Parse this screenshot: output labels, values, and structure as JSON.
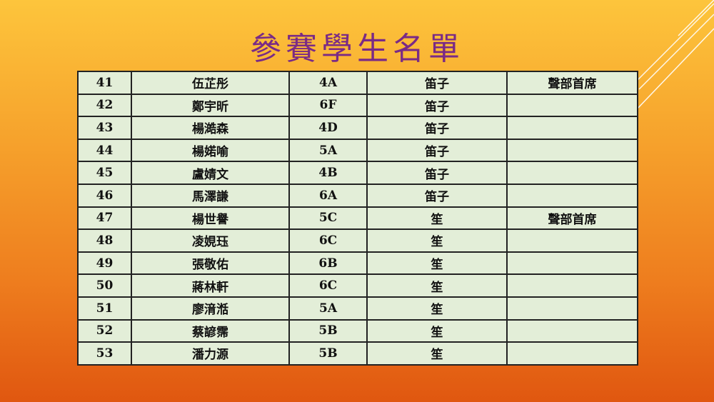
{
  "title": "參賽學生名單",
  "rows": [
    [
      "41",
      "伍芷彤",
      "4A",
      "笛子",
      "聲部首席"
    ],
    [
      "42",
      "鄭宇昕",
      "6F",
      "笛子",
      ""
    ],
    [
      "43",
      "楊澔森",
      "4D",
      "笛子",
      ""
    ],
    [
      "44",
      "楊婼喻",
      "5A",
      "笛子",
      ""
    ],
    [
      "45",
      "盧婧文",
      "4B",
      "笛子",
      ""
    ],
    [
      "46",
      "馬澤謙",
      "6A",
      "笛子",
      ""
    ],
    [
      "47",
      "楊世譽",
      "5C",
      "笙",
      "聲部首席"
    ],
    [
      "48",
      "凌娊珏",
      "6C",
      "笙",
      ""
    ],
    [
      "49",
      "張敬佑",
      "6B",
      "笙",
      ""
    ],
    [
      "50",
      "蔣林軒",
      "6C",
      "笙",
      ""
    ],
    [
      "51",
      "廖湇湉",
      "5A",
      "笙",
      ""
    ],
    [
      "52",
      "蔡諺霈",
      "5B",
      "笙",
      ""
    ],
    [
      "53",
      "潘力源",
      "5B",
      "笙",
      ""
    ]
  ]
}
